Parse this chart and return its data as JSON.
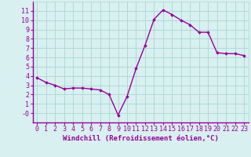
{
  "x": [
    0,
    1,
    2,
    3,
    4,
    5,
    6,
    7,
    8,
    9,
    10,
    11,
    12,
    13,
    14,
    15,
    16,
    17,
    18,
    19,
    20,
    21,
    22,
    23
  ],
  "y": [
    3.8,
    3.3,
    3.0,
    2.6,
    2.7,
    2.7,
    2.6,
    2.5,
    2.0,
    -0.2,
    1.8,
    4.8,
    7.3,
    10.1,
    11.1,
    10.6,
    10.0,
    9.5,
    8.7,
    8.7,
    6.5,
    6.4,
    6.4,
    6.2
  ],
  "line_color": "#990099",
  "marker": "D",
  "marker_size": 1.8,
  "line_width": 1.0,
  "xlabel": "Windchill (Refroidissement éolien,°C)",
  "xlim": [
    -0.5,
    23.5
  ],
  "ylim": [
    -1,
    12
  ],
  "yticks": [
    0,
    1,
    2,
    3,
    4,
    5,
    6,
    7,
    8,
    9,
    10,
    11
  ],
  "xticks": [
    0,
    1,
    2,
    3,
    4,
    5,
    6,
    7,
    8,
    9,
    10,
    11,
    12,
    13,
    14,
    15,
    16,
    17,
    18,
    19,
    20,
    21,
    22,
    23
  ],
  "ytick_labels": [
    "-0",
    "1",
    "2",
    "3",
    "4",
    "5",
    "6",
    "7",
    "8",
    "9",
    "10",
    "11"
  ],
  "xtick_labels": [
    "0",
    "1",
    "2",
    "3",
    "4",
    "5",
    "6",
    "7",
    "8",
    "9",
    "10",
    "11",
    "12",
    "13",
    "14",
    "15",
    "16",
    "17",
    "18",
    "19",
    "20",
    "21",
    "22",
    "23"
  ],
  "grid_color": "#b0d8d8",
  "bg_color": "#d8f0f0",
  "xlabel_fontsize": 6.5,
  "tick_fontsize": 6.0,
  "xlabel_color": "#990099",
  "tick_color": "#990099",
  "spine_color": "#990099"
}
